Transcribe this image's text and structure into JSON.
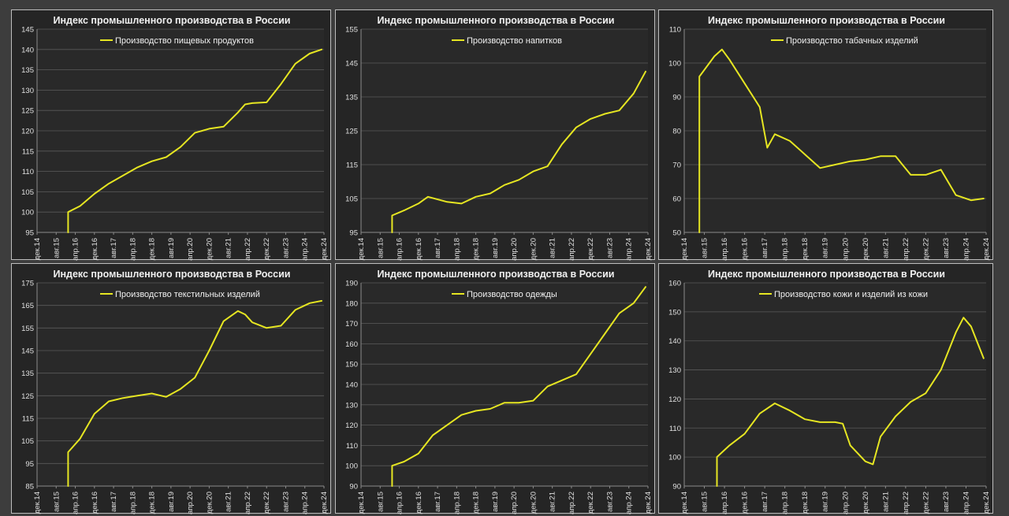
{
  "chart_data": [
    {
      "type": "line",
      "title": "Индекс промышленного производства в России",
      "series": [
        {
          "name": "Производство пищевых продуктов",
          "x": [
            "янв.16",
            "июн.16",
            "дек.16",
            "июн.17",
            "дек.17",
            "июн.18",
            "дек.18",
            "июн.19",
            "дек.19",
            "июн.20",
            "дек.20",
            "июн.21",
            "дек.21",
            "мар.22",
            "июн.22",
            "дек.22",
            "июн.23",
            "дек.23",
            "июн.24",
            "ноя.24"
          ],
          "y": [
            100,
            101.5,
            104.5,
            107,
            109,
            111,
            112.5,
            113.5,
            116,
            119.5,
            120.5,
            121,
            124.5,
            126.5,
            126.8,
            127,
            131.5,
            136.5,
            139,
            140
          ]
        }
      ],
      "ylim": [
        95,
        145
      ],
      "yticks": [
        95,
        100,
        105,
        110,
        115,
        120,
        125,
        130,
        135,
        140,
        145
      ],
      "xticks": [
        "дек.14",
        "авг.15",
        "апр.16",
        "дек.16",
        "авг.17",
        "апр.18",
        "дек.18",
        "авг.19",
        "апр.20",
        "дек.20",
        "авг.21",
        "апр.22",
        "дек.22",
        "авг.23",
        "апр.24",
        "дек.24"
      ],
      "grid": true,
      "legend": "top-left"
    },
    {
      "type": "line",
      "title": "Индекс промышленного производства в России",
      "series": [
        {
          "name": "Производство напитков",
          "x": [
            "янв.16",
            "июн.16",
            "дек.16",
            "апр.17",
            "дек.17",
            "июн.18",
            "дек.18",
            "июн.19",
            "дек.19",
            "июн.20",
            "дек.20",
            "июн.21",
            "дек.21",
            "июн.22",
            "дек.22",
            "июн.23",
            "дек.23",
            "июн.24",
            "ноя.24"
          ],
          "y": [
            100,
            101.5,
            103.5,
            105.5,
            104,
            103.5,
            105.5,
            106.5,
            109,
            110.5,
            113,
            114.5,
            121,
            126,
            128.5,
            130,
            131,
            136,
            142.5
          ]
        }
      ],
      "ylim": [
        95,
        155
      ],
      "yticks": [
        95,
        105,
        115,
        125,
        135,
        145,
        155
      ],
      "xticks": [
        "дек.14",
        "авг.15",
        "апр.16",
        "дек.16",
        "авг.17",
        "апр.18",
        "дек.18",
        "авг.19",
        "апр.20",
        "дек.20",
        "авг.21",
        "апр.22",
        "дек.22",
        "авг.23",
        "апр.24",
        "дек.24"
      ],
      "grid": true,
      "legend": "top-center"
    },
    {
      "type": "line",
      "title": "Индекс промышленного производства в России",
      "series": [
        {
          "name": "Производство табачных изделий",
          "x": [
            "июн.15",
            "дек.15",
            "мар.16",
            "июн.16",
            "дек.16",
            "июн.17",
            "сен.17",
            "дек.17",
            "июн.18",
            "дек.18",
            "июн.19",
            "дек.19",
            "июн.20",
            "дек.20",
            "июн.21",
            "дек.21",
            "июн.22",
            "дек.22",
            "июн.23",
            "дек.23",
            "июн.24",
            "ноя.24"
          ],
          "y": [
            96,
            102,
            104,
            101,
            94,
            87,
            75,
            79,
            77,
            73,
            69,
            70,
            71,
            71.5,
            72.5,
            72.5,
            67,
            67,
            68.5,
            61,
            59.5,
            60
          ]
        }
      ],
      "ylim": [
        50,
        110
      ],
      "yticks": [
        50,
        60,
        70,
        80,
        90,
        100,
        110
      ],
      "xticks": [
        "дек.14",
        "авг.15",
        "апр.16",
        "дек.16",
        "авг.17",
        "апр.18",
        "дек.18",
        "авг.19",
        "апр.20",
        "дек.20",
        "авг.21",
        "апр.22",
        "дек.22",
        "авг.23",
        "апр.24",
        "дек.24"
      ],
      "grid": true,
      "legend": "top-center"
    },
    {
      "type": "line",
      "title": "Индекс промышленного производства в России",
      "series": [
        {
          "name": "Производство текстильных изделий",
          "x": [
            "янв.16",
            "июн.16",
            "дек.16",
            "июн.17",
            "дек.17",
            "июн.18",
            "дек.18",
            "июн.19",
            "дек.19",
            "июн.20",
            "дек.20",
            "июн.21",
            "дек.21",
            "мар.22",
            "июн.22",
            "дек.22",
            "июн.23",
            "дек.23",
            "июн.24",
            "ноя.24"
          ],
          "y": [
            100,
            106,
            117,
            122.5,
            124,
            125,
            126,
            124.5,
            128,
            133,
            145,
            158,
            162.5,
            161,
            157.5,
            155,
            156,
            163,
            166,
            167
          ]
        }
      ],
      "ylim": [
        85,
        175
      ],
      "yticks": [
        85,
        95,
        105,
        115,
        125,
        135,
        145,
        155,
        165,
        175
      ],
      "xticks": [
        "дек.14",
        "авг.15",
        "апр.16",
        "дек.16",
        "авг.17",
        "апр.18",
        "дек.18",
        "авг.19",
        "апр.20",
        "дек.20",
        "авг.21",
        "апр.22",
        "дек.22",
        "авг.23",
        "апр.24",
        "дек.24"
      ],
      "grid": true,
      "legend": "top-left"
    },
    {
      "type": "line",
      "title": "Индекс промышленного производства в России",
      "series": [
        {
          "name": "Производство одежды",
          "x": [
            "янв.16",
            "июн.16",
            "дек.16",
            "июн.17",
            "дек.17",
            "июн.18",
            "дек.18",
            "июн.19",
            "дек.19",
            "июн.20",
            "дек.20",
            "июн.21",
            "дек.21",
            "июн.22",
            "дек.22",
            "июн.23",
            "дек.23",
            "июн.24",
            "ноя.24"
          ],
          "y": [
            100,
            102,
            106,
            115,
            120,
            125,
            127,
            128,
            131,
            131,
            132,
            139,
            142,
            145,
            155,
            165,
            175,
            180,
            188
          ]
        }
      ],
      "ylim": [
        90,
        190
      ],
      "yticks": [
        90,
        100,
        110,
        120,
        130,
        140,
        150,
        160,
        170,
        180,
        190
      ],
      "xticks": [
        "дек.14",
        "авг.15",
        "апр.16",
        "дек.16",
        "авг.17",
        "апр.18",
        "дек.18",
        "авг.19",
        "апр.20",
        "дек.20",
        "авг.21",
        "апр.22",
        "дек.22",
        "авг.23",
        "апр.24",
        "дек.24"
      ],
      "grid": true,
      "legend": "top-center"
    },
    {
      "type": "line",
      "title": "Индекс промышленного производства в России",
      "series": [
        {
          "name": "Производство кожи и изделий из кожи",
          "x": [
            "янв.16",
            "июн.16",
            "дек.16",
            "июн.17",
            "дек.17",
            "июн.18",
            "дек.18",
            "июн.19",
            "дек.19",
            "мар.20",
            "июн.20",
            "дек.20",
            "мар.21",
            "июн.21",
            "дек.21",
            "июн.22",
            "дек.22",
            "июн.23",
            "дек.23",
            "мар.24",
            "июн.24",
            "ноя.24"
          ],
          "y": [
            100,
            104,
            108,
            115,
            118.5,
            116,
            113,
            112,
            112,
            111.5,
            104,
            98.5,
            97.5,
            107,
            114,
            119,
            122,
            130,
            143,
            148,
            145,
            134
          ]
        }
      ],
      "ylim": [
        90,
        160
      ],
      "yticks": [
        90,
        100,
        110,
        120,
        130,
        140,
        150,
        160
      ],
      "xticks": [
        "дек.14",
        "авг.15",
        "апр.16",
        "дек.16",
        "авг.17",
        "апр.18",
        "дек.18",
        "авг.19",
        "апр.20",
        "дек.20",
        "авг.21",
        "апр.22",
        "дек.22",
        "авг.23",
        "апр.24",
        "дек.24"
      ],
      "grid": true,
      "legend": "top-center"
    }
  ]
}
